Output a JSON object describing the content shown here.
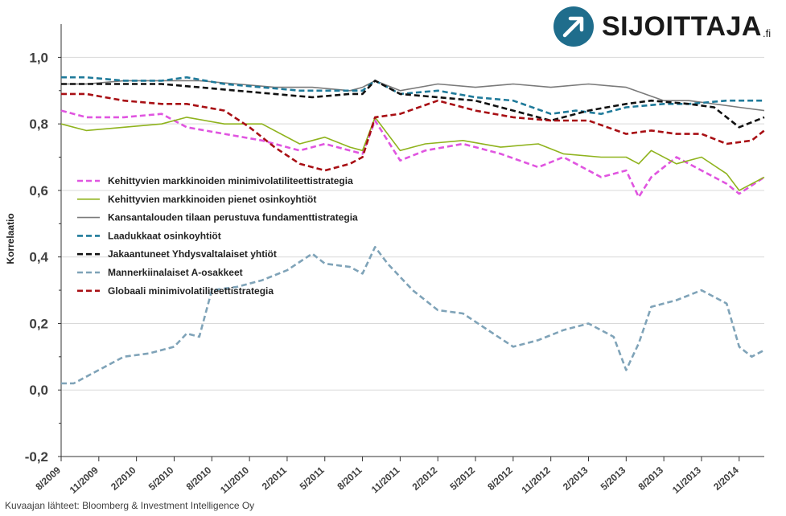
{
  "brand": {
    "name": "SIJOITTAJA",
    "tld": ".fi"
  },
  "source_note": "Kuvaajan lähteet: Bloomberg & Investment Intelligence Oy",
  "chart_data": {
    "type": "line",
    "title": "",
    "xlabel": "",
    "ylabel": "Korrelaatio",
    "ylim": [
      -0.2,
      1.1
    ],
    "yticks": [
      -0.2,
      0.0,
      0.2,
      0.4,
      0.6,
      0.8,
      1.0
    ],
    "ytick_labels": [
      "-0,2",
      "0,0",
      "0,2",
      "0,4",
      "0,6",
      "0,8",
      "1,0"
    ],
    "x_range": [
      "2009-08",
      "2014-04"
    ],
    "xtick_labels": [
      "8/2009",
      "11/2009",
      "2/2010",
      "5/2010",
      "8/2010",
      "11/2010",
      "2/2011",
      "5/2011",
      "8/2011",
      "11/2011",
      "2/2012",
      "5/2012",
      "8/2012",
      "11/2012",
      "2/2013",
      "5/2013",
      "8/2013",
      "11/2013",
      "2/2014"
    ],
    "grid": "horizontal",
    "legend_position": "left-center",
    "series": [
      {
        "name": "Kehittyvien markkinoiden minimivolatiliteettistrategia",
        "color": "#e055e0",
        "dash": true,
        "x": [
          "2009-08",
          "2009-10",
          "2010-01",
          "2010-04",
          "2010-06",
          "2010-09",
          "2010-12",
          "2011-03",
          "2011-05",
          "2011-07",
          "2011-08",
          "2011-09",
          "2011-11",
          "2012-01",
          "2012-04",
          "2012-07",
          "2012-10",
          "2012-12",
          "2013-03",
          "2013-05",
          "2013-06",
          "2013-07",
          "2013-09",
          "2013-11",
          "2014-01",
          "2014-02",
          "2014-04"
        ],
        "values": [
          0.84,
          0.82,
          0.82,
          0.83,
          0.79,
          0.77,
          0.75,
          0.72,
          0.74,
          0.72,
          0.71,
          0.81,
          0.69,
          0.72,
          0.74,
          0.71,
          0.67,
          0.7,
          0.64,
          0.66,
          0.58,
          0.64,
          0.7,
          0.66,
          0.62,
          0.59,
          0.64
        ]
      },
      {
        "name": "Kehittyvien markkinoiden pienet osinkoyhtiöt",
        "color": "#8fb31d",
        "dash": false,
        "x": [
          "2009-08",
          "2009-10",
          "2010-01",
          "2010-04",
          "2010-06",
          "2010-09",
          "2010-12",
          "2011-03",
          "2011-05",
          "2011-07",
          "2011-08",
          "2011-09",
          "2011-11",
          "2012-01",
          "2012-04",
          "2012-07",
          "2012-10",
          "2012-12",
          "2013-03",
          "2013-05",
          "2013-06",
          "2013-07",
          "2013-09",
          "2013-11",
          "2014-01",
          "2014-02",
          "2014-04"
        ],
        "values": [
          0.8,
          0.78,
          0.79,
          0.8,
          0.82,
          0.8,
          0.8,
          0.74,
          0.76,
          0.73,
          0.72,
          0.82,
          0.72,
          0.74,
          0.75,
          0.73,
          0.74,
          0.71,
          0.7,
          0.7,
          0.68,
          0.72,
          0.68,
          0.7,
          0.65,
          0.6,
          0.64
        ]
      },
      {
        "name": "Kansantalouden tilaan perustuva fundamenttistrategia",
        "color": "#7a7a7a",
        "dash": false,
        "x": [
          "2009-08",
          "2009-10",
          "2010-01",
          "2010-04",
          "2010-07",
          "2010-10",
          "2011-01",
          "2011-04",
          "2011-07",
          "2011-08",
          "2011-09",
          "2011-11",
          "2012-02",
          "2012-05",
          "2012-08",
          "2012-11",
          "2013-02",
          "2013-05",
          "2013-08",
          "2013-10",
          "2013-12",
          "2014-02",
          "2014-04"
        ],
        "values": [
          0.92,
          0.92,
          0.93,
          0.93,
          0.93,
          0.92,
          0.91,
          0.91,
          0.9,
          0.91,
          0.93,
          0.9,
          0.92,
          0.91,
          0.92,
          0.91,
          0.92,
          0.91,
          0.87,
          0.87,
          0.86,
          0.85,
          0.84
        ]
      },
      {
        "name": "Laadukkaat osinkoyhtiöt",
        "color": "#1f7a9a",
        "dash": true,
        "x": [
          "2009-08",
          "2009-10",
          "2010-01",
          "2010-04",
          "2010-06",
          "2010-09",
          "2010-12",
          "2011-03",
          "2011-06",
          "2011-08",
          "2011-09",
          "2011-11",
          "2012-02",
          "2012-05",
          "2012-08",
          "2012-11",
          "2013-01",
          "2013-03",
          "2013-05",
          "2013-08",
          "2013-10",
          "2014-01",
          "2014-04"
        ],
        "values": [
          0.94,
          0.94,
          0.93,
          0.93,
          0.94,
          0.92,
          0.91,
          0.9,
          0.9,
          0.9,
          0.93,
          0.89,
          0.9,
          0.88,
          0.87,
          0.83,
          0.84,
          0.83,
          0.85,
          0.86,
          0.86,
          0.87,
          0.87
        ]
      },
      {
        "name": "Jakaantuneet Yhdysvaltalaiset yhtiöt",
        "color": "#111111",
        "dash": true,
        "x": [
          "2009-08",
          "2009-10",
          "2010-01",
          "2010-04",
          "2010-07",
          "2010-10",
          "2011-01",
          "2011-04",
          "2011-07",
          "2011-08",
          "2011-09",
          "2011-11",
          "2012-02",
          "2012-05",
          "2012-08",
          "2012-11",
          "2013-02",
          "2013-05",
          "2013-07",
          "2013-10",
          "2013-12",
          "2014-02",
          "2014-04"
        ],
        "values": [
          0.92,
          0.92,
          0.92,
          0.92,
          0.91,
          0.9,
          0.89,
          0.88,
          0.89,
          0.89,
          0.93,
          0.89,
          0.88,
          0.87,
          0.84,
          0.81,
          0.84,
          0.86,
          0.87,
          0.86,
          0.85,
          0.79,
          0.82
        ]
      },
      {
        "name": "Mannerkiinalaiset A-osakkeet",
        "color": "#7fa3b8",
        "dash": true,
        "x": [
          "2009-08",
          "2009-09",
          "2009-11",
          "2010-01",
          "2010-03",
          "2010-05",
          "2010-06",
          "2010-07",
          "2010-08",
          "2010-10",
          "2010-12",
          "2011-02",
          "2011-04",
          "2011-05",
          "2011-07",
          "2011-08",
          "2011-09",
          "2011-10",
          "2011-12",
          "2012-02",
          "2012-04",
          "2012-06",
          "2012-08",
          "2012-10",
          "2012-12",
          "2013-02",
          "2013-04",
          "2013-05",
          "2013-06",
          "2013-07",
          "2013-09",
          "2013-11",
          "2013-12",
          "2014-01",
          "2014-02",
          "2014-03",
          "2014-04"
        ],
        "values": [
          0.02,
          0.02,
          0.06,
          0.1,
          0.11,
          0.13,
          0.17,
          0.16,
          0.3,
          0.31,
          0.33,
          0.36,
          0.41,
          0.38,
          0.37,
          0.35,
          0.43,
          0.38,
          0.3,
          0.24,
          0.23,
          0.18,
          0.13,
          0.15,
          0.18,
          0.2,
          0.16,
          0.06,
          0.14,
          0.25,
          0.27,
          0.3,
          0.28,
          0.26,
          0.13,
          0.1,
          0.12
        ]
      },
      {
        "name": "Globaali minimivolatiliteettistrategia",
        "color": "#a80f14",
        "dash": true,
        "x": [
          "2009-08",
          "2009-10",
          "2010-01",
          "2010-04",
          "2010-06",
          "2010-09",
          "2010-11",
          "2011-01",
          "2011-03",
          "2011-05",
          "2011-07",
          "2011-08",
          "2011-09",
          "2011-11",
          "2012-02",
          "2012-05",
          "2012-08",
          "2012-11",
          "2013-02",
          "2013-05",
          "2013-07",
          "2013-09",
          "2013-11",
          "2014-01",
          "2014-03",
          "2014-04"
        ],
        "values": [
          0.89,
          0.89,
          0.87,
          0.86,
          0.86,
          0.84,
          0.79,
          0.73,
          0.68,
          0.66,
          0.68,
          0.7,
          0.82,
          0.83,
          0.87,
          0.84,
          0.82,
          0.81,
          0.81,
          0.77,
          0.78,
          0.77,
          0.77,
          0.74,
          0.75,
          0.78
        ]
      }
    ]
  }
}
